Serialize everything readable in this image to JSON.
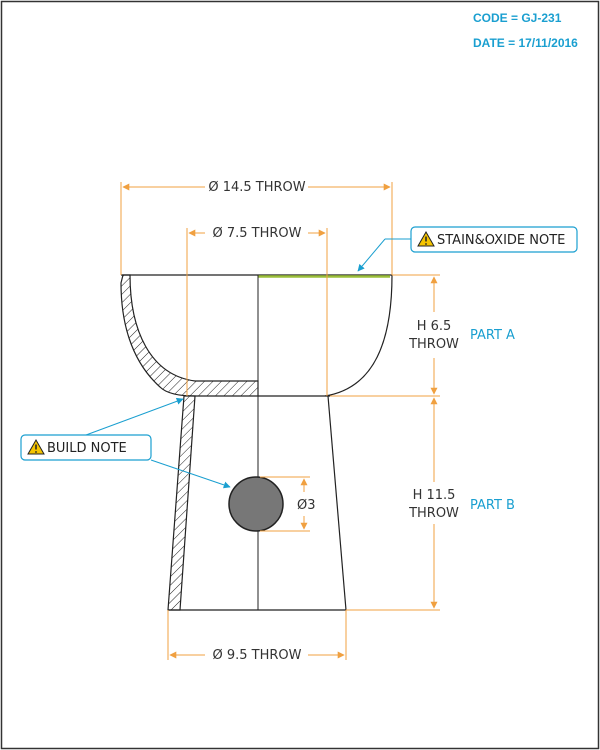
{
  "header": {
    "code": "CODE = GJ-231",
    "date": "DATE = 17/11/2016"
  },
  "dimensions": {
    "outer_diameter": "Ø 14.5 THROW",
    "inner_diameter": "Ø 7.5 THROW",
    "base_diameter": "Ø 9.5 THROW",
    "hole_diameter": "Ø3",
    "height_a_line1": "H 6.5",
    "height_a_line2": "THROW",
    "height_b_line1": "H 11.5",
    "height_b_line2": "THROW"
  },
  "parts": {
    "part_a": "PART A",
    "part_b": "PART B"
  },
  "notes": {
    "stain_oxide": "STAIN&OXIDE NOTE",
    "build": "BUILD NOTE"
  },
  "colors": {
    "dimension": "#f0a040",
    "callout": "#1a9fd0",
    "outline": "#222222",
    "hole_fill": "#777777",
    "glaze_line": "#9bbf3a"
  }
}
